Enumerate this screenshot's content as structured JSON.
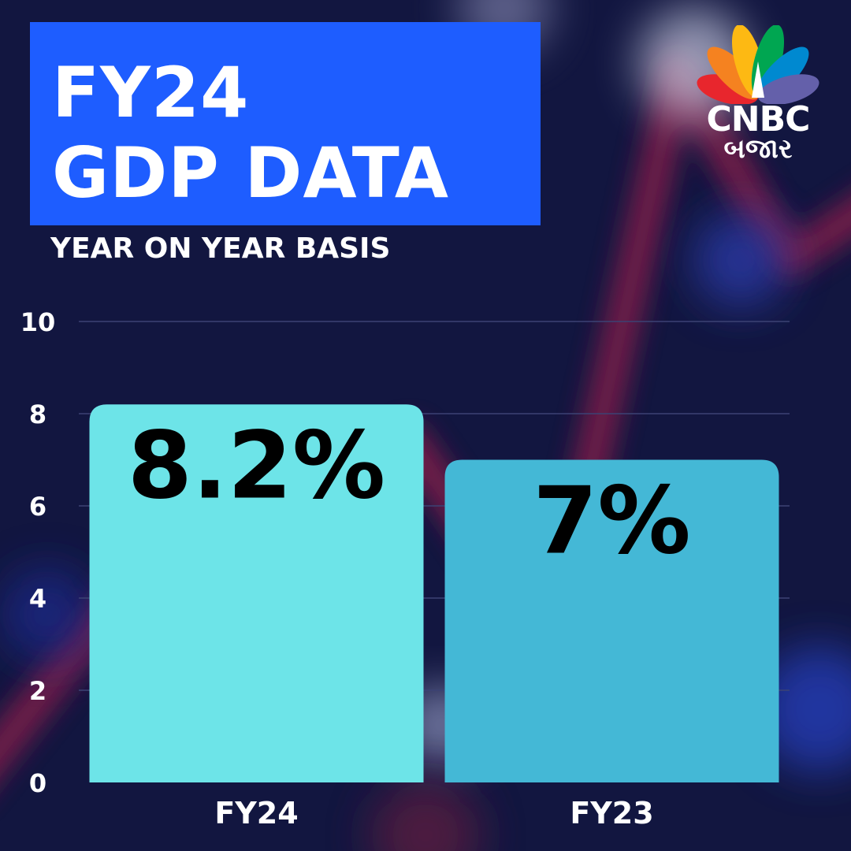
{
  "header": {
    "title_line1": "FY24",
    "title_line2": "GDP DATA",
    "subtitle": "YEAR ON YEAR BASIS"
  },
  "logo": {
    "name": "CNBC",
    "subname": "બજાર",
    "icon": "peacock-icon"
  },
  "colors": {
    "background": "#121640",
    "title_box": "#1e5dff",
    "bar_fy24": "#6de4e8",
    "bar_fy23": "#44b8d6",
    "label_text": "#000000",
    "axis_text": "#ffffff"
  },
  "chart_data": {
    "type": "bar",
    "categories": [
      "FY24",
      "FY23"
    ],
    "values": [
      8.2,
      7
    ],
    "value_labels": [
      "8.2%",
      "7%"
    ],
    "yticks": [
      0,
      2,
      4,
      6,
      8,
      10
    ],
    "ylim": [
      0,
      10
    ],
    "grid": true,
    "legend": "none"
  }
}
